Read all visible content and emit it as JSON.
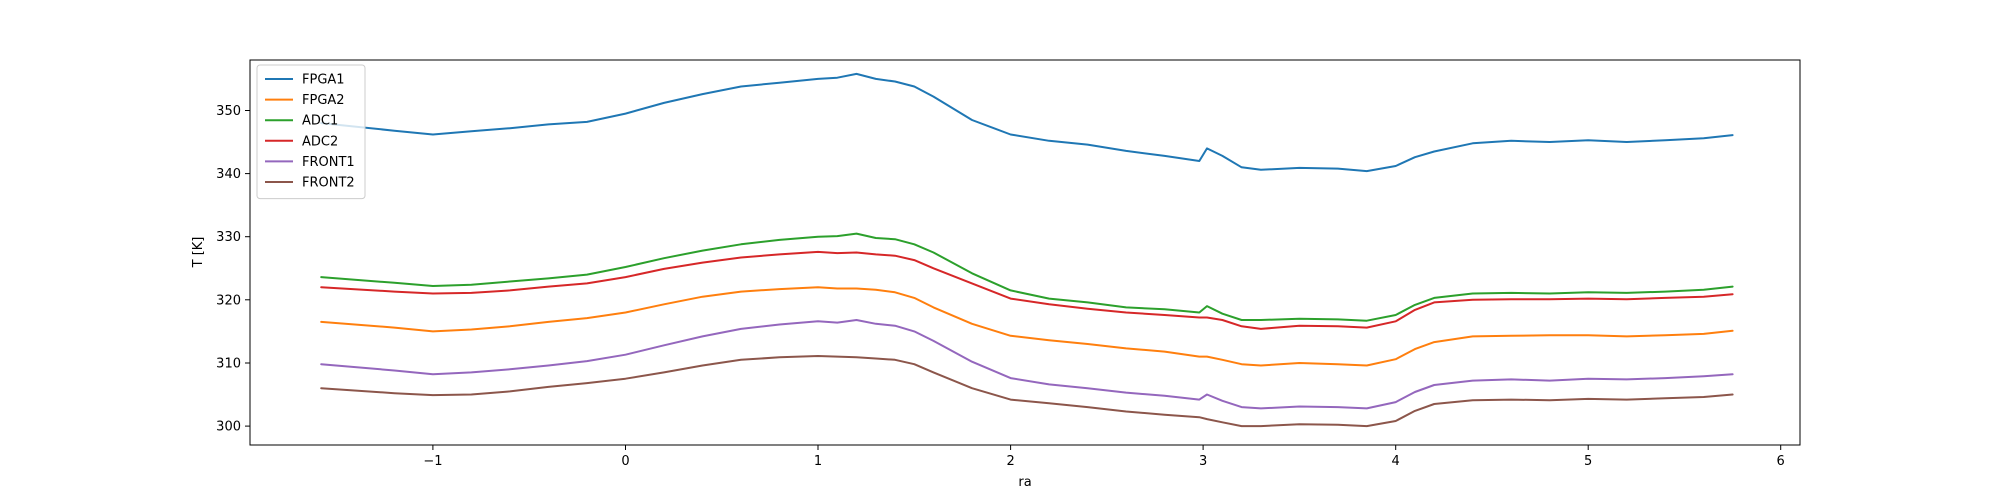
{
  "chart_data": {
    "type": "line",
    "title": "",
    "xlabel": "ra",
    "ylabel": "T [K]",
    "xlim": [
      -1.95,
      6.1
    ],
    "ylim": [
      297,
      358
    ],
    "x_ticks": [
      -1,
      0,
      1,
      2,
      3,
      4,
      5,
      6
    ],
    "x_tick_labels": [
      "−1",
      "0",
      "1",
      "2",
      "3",
      "4",
      "5",
      "6"
    ],
    "y_ticks": [
      300,
      310,
      320,
      330,
      340,
      350
    ],
    "y_tick_labels": [
      "300",
      "310",
      "320",
      "330",
      "340",
      "350"
    ],
    "grid": false,
    "legend": {
      "position": "top-left",
      "entries": [
        "FPGA1",
        "FPGA2",
        "ADC1",
        "ADC2",
        "FRONT1",
        "FRONT2"
      ]
    },
    "x": [
      -1.58,
      -1.2,
      -1.0,
      -0.8,
      -0.6,
      -0.4,
      -0.2,
      0.0,
      0.2,
      0.4,
      0.6,
      0.8,
      1.0,
      1.1,
      1.2,
      1.3,
      1.4,
      1.5,
      1.6,
      1.8,
      2.0,
      2.2,
      2.4,
      2.6,
      2.8,
      2.98,
      3.02,
      3.1,
      3.2,
      3.3,
      3.5,
      3.7,
      3.85,
      4.0,
      4.1,
      4.2,
      4.4,
      4.6,
      4.8,
      5.0,
      5.2,
      5.4,
      5.6,
      5.75
    ],
    "series": [
      {
        "name": "FPGA1",
        "color": "#1f77b4",
        "values": [
          348.0,
          346.8,
          346.2,
          346.7,
          347.2,
          347.8,
          348.2,
          349.5,
          351.2,
          352.6,
          353.8,
          354.4,
          355.0,
          355.2,
          355.8,
          355.0,
          354.6,
          353.8,
          352.2,
          348.5,
          346.2,
          345.2,
          344.6,
          343.6,
          342.8,
          342.0,
          344.0,
          342.8,
          341.0,
          340.6,
          340.9,
          340.8,
          340.4,
          341.2,
          342.6,
          343.5,
          344.8,
          345.2,
          345.0,
          345.3,
          345.0,
          345.3,
          345.6,
          346.1
        ]
      },
      {
        "name": "FPGA2",
        "color": "#ff7f0e",
        "values": [
          316.5,
          315.6,
          315.0,
          315.3,
          315.8,
          316.5,
          317.1,
          318.0,
          319.3,
          320.5,
          321.3,
          321.7,
          322.0,
          321.8,
          321.8,
          321.6,
          321.2,
          320.3,
          318.8,
          316.2,
          314.3,
          313.6,
          313.0,
          312.3,
          311.8,
          311.0,
          311.0,
          310.5,
          309.8,
          309.6,
          310.0,
          309.8,
          309.6,
          310.6,
          312.2,
          313.3,
          314.2,
          314.3,
          314.4,
          314.4,
          314.2,
          314.4,
          314.6,
          315.1
        ]
      },
      {
        "name": "ADC1",
        "color": "#2ca02c",
        "values": [
          323.6,
          322.7,
          322.2,
          322.4,
          322.9,
          323.4,
          324.0,
          325.2,
          326.6,
          327.8,
          328.8,
          329.5,
          330.0,
          330.1,
          330.5,
          329.8,
          329.6,
          328.8,
          327.5,
          324.2,
          321.5,
          320.2,
          319.6,
          318.8,
          318.5,
          318.0,
          319.0,
          317.8,
          316.8,
          316.8,
          317.0,
          316.9,
          316.7,
          317.6,
          319.2,
          320.3,
          321.0,
          321.1,
          321.0,
          321.2,
          321.1,
          321.3,
          321.6,
          322.1
        ]
      },
      {
        "name": "ADC2",
        "color": "#d62728",
        "values": [
          322.0,
          321.3,
          321.0,
          321.1,
          321.5,
          322.1,
          322.6,
          323.6,
          324.9,
          325.9,
          326.7,
          327.2,
          327.6,
          327.4,
          327.5,
          327.2,
          327.0,
          326.3,
          325.0,
          322.6,
          320.2,
          319.3,
          318.6,
          318.0,
          317.6,
          317.2,
          317.2,
          316.8,
          315.8,
          315.4,
          315.9,
          315.8,
          315.6,
          316.6,
          318.4,
          319.6,
          320.0,
          320.1,
          320.1,
          320.2,
          320.1,
          320.3,
          320.5,
          320.9
        ]
      },
      {
        "name": "FRONT1",
        "color": "#9467bd",
        "values": [
          309.8,
          308.8,
          308.2,
          308.5,
          309.0,
          309.6,
          310.3,
          311.3,
          312.8,
          314.2,
          315.4,
          316.1,
          316.6,
          316.4,
          316.8,
          316.2,
          315.9,
          315.0,
          313.5,
          310.2,
          307.6,
          306.6,
          306.0,
          305.3,
          304.8,
          304.2,
          305.0,
          304.0,
          303.0,
          302.8,
          303.1,
          303.0,
          302.8,
          303.8,
          305.4,
          306.5,
          307.2,
          307.4,
          307.2,
          307.5,
          307.4,
          307.6,
          307.9,
          308.2
        ]
      },
      {
        "name": "FRONT2",
        "color": "#8c564b",
        "values": [
          306.0,
          305.2,
          304.9,
          305.0,
          305.5,
          306.2,
          306.8,
          307.5,
          308.5,
          309.6,
          310.5,
          310.9,
          311.1,
          311.0,
          310.9,
          310.7,
          310.5,
          309.8,
          308.5,
          306.0,
          304.2,
          303.6,
          303.0,
          302.3,
          301.8,
          301.4,
          301.1,
          300.6,
          300.0,
          300.0,
          300.3,
          300.2,
          300.0,
          300.8,
          302.4,
          303.5,
          304.1,
          304.2,
          304.1,
          304.3,
          304.2,
          304.4,
          304.6,
          305.0
        ]
      }
    ]
  }
}
